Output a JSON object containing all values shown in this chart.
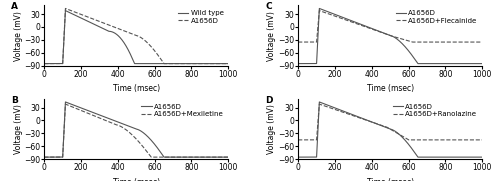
{
  "panel_A_label": "A",
  "panel_B_label": "B",
  "panel_C_label": "C",
  "panel_D_label": "D",
  "xlabel": "Time (msec)",
  "ylabel": "Voltage (mV)",
  "xlim": [
    0,
    1000
  ],
  "ylim": [
    -90,
    50
  ],
  "yticks": [
    -90,
    -60,
    -30,
    0,
    30
  ],
  "xticks": [
    0,
    200,
    400,
    600,
    800,
    1000
  ],
  "legend_A": [
    "Wild type",
    "A1656D"
  ],
  "legend_B": [
    "A1656D",
    "A1656D+Mexiletine"
  ],
  "legend_C": [
    "A1656D",
    "A1656D+Flecainide"
  ],
  "legend_D": [
    "A1656D",
    "A1656D+Ranolazine"
  ],
  "line_color_solid": "#555555",
  "line_color_dashed": "#555555",
  "background_color": "#ffffff",
  "ap_resting": -85,
  "ap_peak": 38,
  "ap_plateau": -20,
  "font_size": 5.5,
  "label_font_size": 6.5,
  "legend_font_size": 5.0
}
